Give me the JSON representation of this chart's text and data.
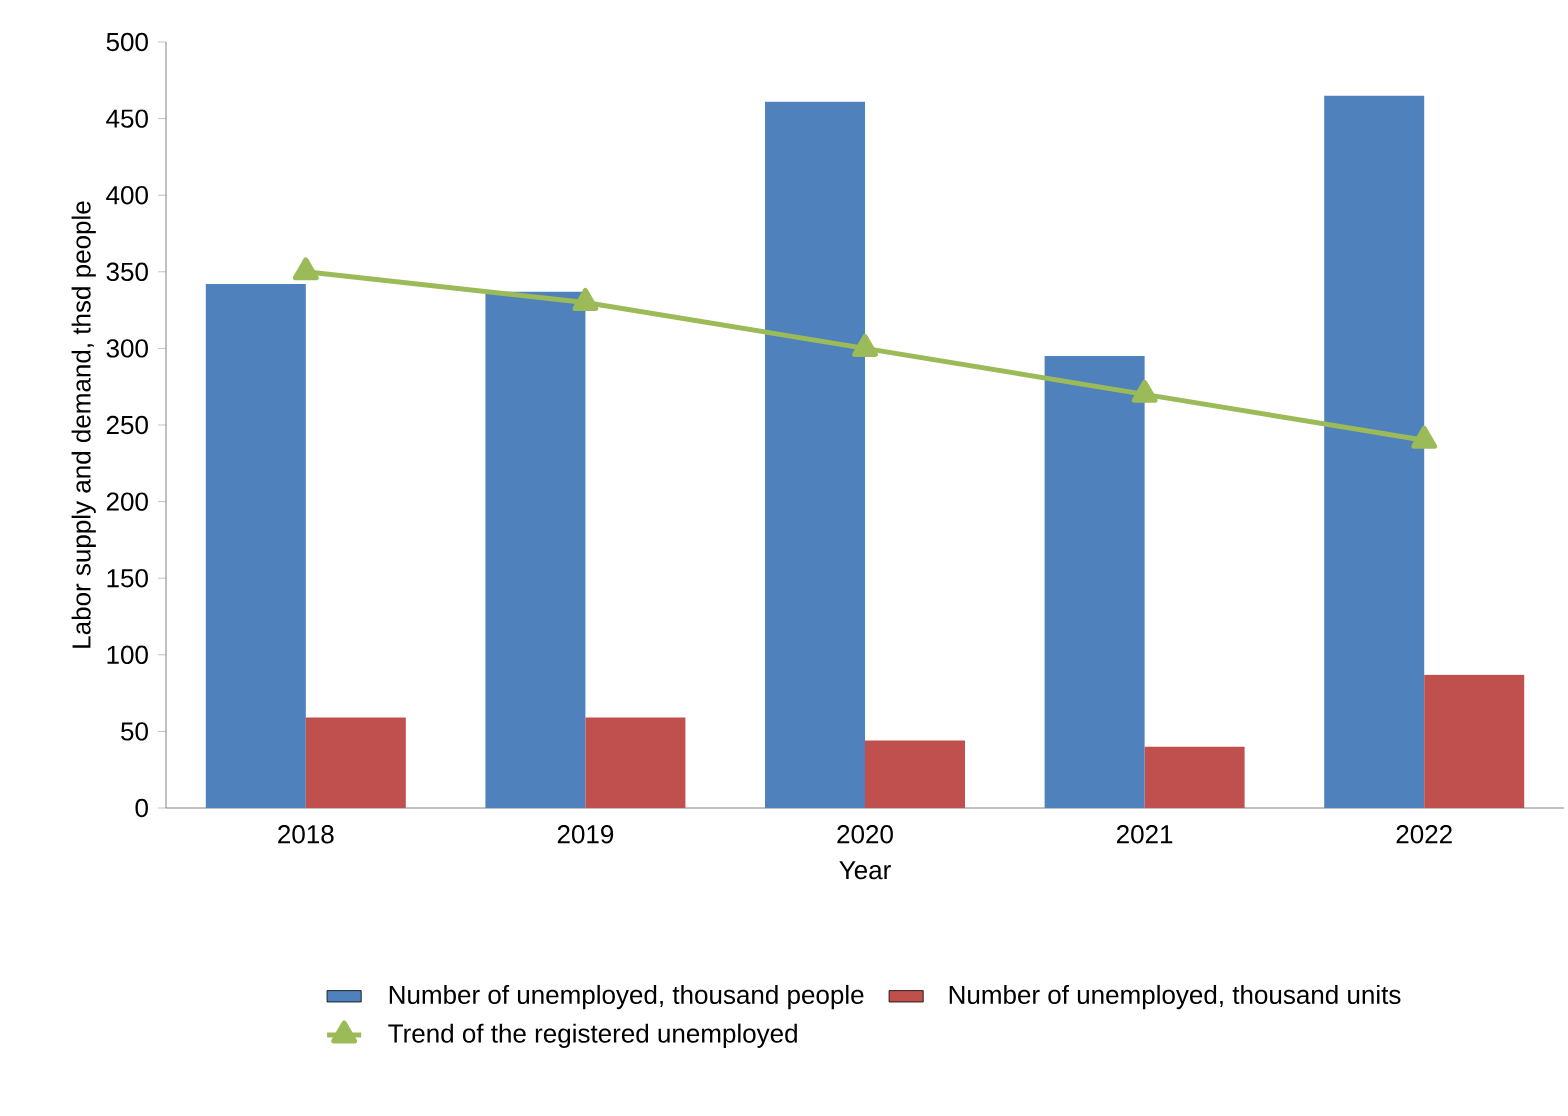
{
  "chart_data": {
    "type": "bar",
    "xlabel": "Year",
    "ylabel": "Labor supply and demand, thsd people",
    "categories": [
      "2018",
      "2019",
      "2020",
      "2021",
      "2022"
    ],
    "series": [
      {
        "name": "Number of unemployed, thousand people",
        "color": "#4f81bd",
        "values": [
          342,
          337,
          461,
          295,
          465
        ]
      },
      {
        "name": "Number of unemployed, thousand units",
        "color": "#c0504d",
        "values": [
          59,
          59,
          44,
          40,
          87
        ]
      },
      {
        "name": "Trend of the registered unemployed",
        "type": "line",
        "color": "#9bbb59",
        "marker": "triangle",
        "values": [
          350,
          330,
          300,
          270,
          240
        ]
      }
    ],
    "ylim": [
      0,
      500
    ],
    "yticks": [
      0,
      50,
      100,
      150,
      200,
      250,
      300,
      350,
      400,
      450,
      500
    ],
    "legend": "bottom"
  }
}
